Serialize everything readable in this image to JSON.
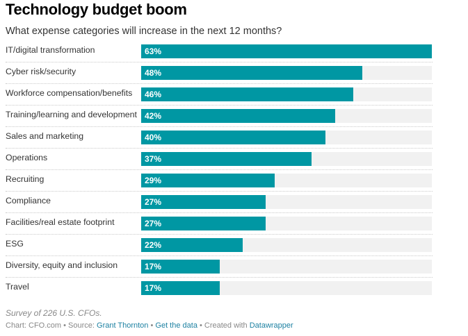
{
  "chart_data": {
    "type": "bar",
    "orientation": "horizontal",
    "title": "Technology budget boom",
    "subtitle": "What expense categories will increase in the next 12 months?",
    "categories": [
      "IT/digital transformation",
      "Cyber risk/security",
      "Workforce compensation/benefits",
      "Training/learning and development",
      "Sales and marketing",
      "Operations",
      "Recruiting",
      "Compliance",
      "Facilities/real estate footprint",
      "ESG",
      "Diversity, equity and inclusion",
      "Travel"
    ],
    "values": [
      63,
      48,
      46,
      42,
      40,
      37,
      29,
      27,
      27,
      22,
      17,
      17
    ],
    "value_labels": [
      "63%",
      "48%",
      "46%",
      "42%",
      "40%",
      "37%",
      "29%",
      "27%",
      "27%",
      "22%",
      "17%",
      "17%"
    ],
    "unit": "%",
    "xlim": [
      0,
      63
    ],
    "xlabel": "",
    "ylabel": "",
    "grid": false,
    "legend": "none",
    "bar_color": "#0097a3",
    "track_color": "#f1f1f1"
  },
  "notes": "Survey of 226 U.S. CFOs.",
  "footer": {
    "chart_prefix": "Chart: CFO.com",
    "sep": " • ",
    "source_prefix": "Source: ",
    "source_link": "Grant Thornton",
    "get_data": "Get the data",
    "created_prefix": "Created with ",
    "created_link": "Datawrapper"
  }
}
